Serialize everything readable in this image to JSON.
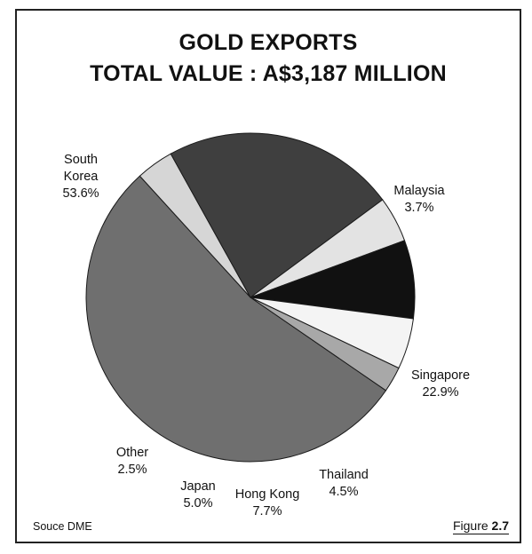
{
  "title_line1": "GOLD EXPORTS",
  "title_line2": "TOTAL VALUE : A$3,187 MILLION",
  "source": "Souce DME",
  "figure_label": "Figure",
  "figure_number": "2.7",
  "chart_data": {
    "type": "pie",
    "title": "GOLD EXPORTS TOTAL VALUE : A$3,187 MILLION",
    "unit": "%",
    "slices": [
      {
        "label": "South Korea",
        "label_lines": [
          "South",
          "Korea",
          "53.6%"
        ],
        "value": 53.6,
        "color": "#6f6f6f"
      },
      {
        "label": "Malaysia",
        "label_lines": [
          "Malaysia",
          "3.7%"
        ],
        "value": 3.7,
        "color": "#d6d6d6"
      },
      {
        "label": "Singapore",
        "label_lines": [
          "Singapore",
          "22.9%"
        ],
        "value": 22.9,
        "color": "#3f3f3f"
      },
      {
        "label": "Thailand",
        "label_lines": [
          "Thailand",
          "4.5%"
        ],
        "value": 4.5,
        "color": "#e3e3e3"
      },
      {
        "label": "Hong Kong",
        "label_lines": [
          "Hong Kong",
          "7.7%"
        ],
        "value": 7.7,
        "color": "#111111"
      },
      {
        "label": "Japan",
        "label_lines": [
          "Japan",
          "5.0%"
        ],
        "value": 5.0,
        "color": "#f4f4f4"
      },
      {
        "label": "Other",
        "label_lines": [
          "Other",
          "2.5%"
        ],
        "value": 2.5,
        "color": "#a8a8a8"
      }
    ]
  }
}
